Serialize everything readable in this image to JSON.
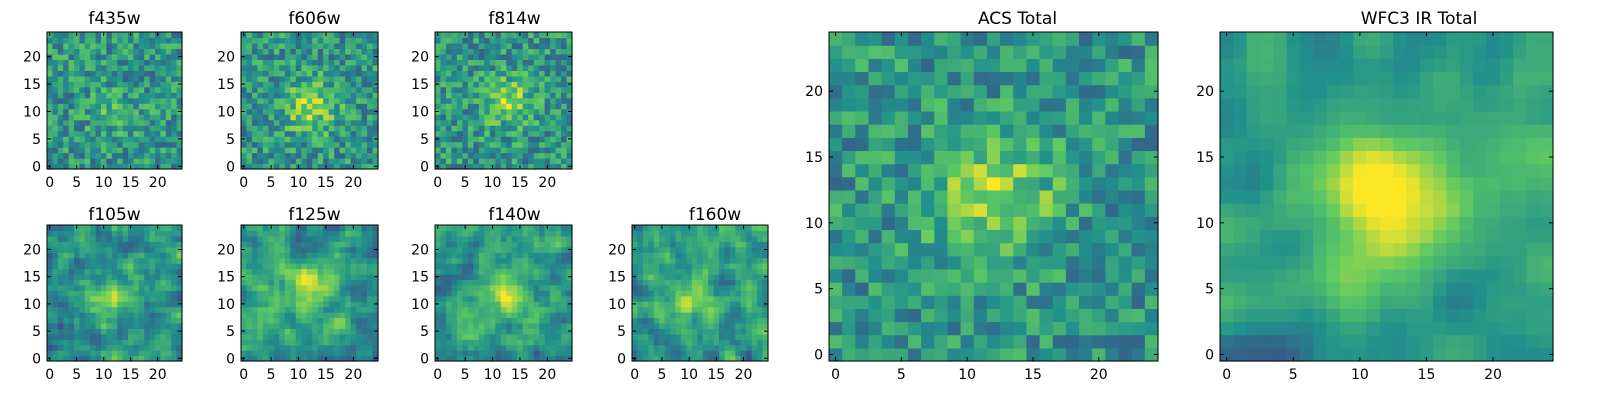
{
  "figure_description": "Grid of image cutout panels showing per-band stamps and stacked totals",
  "colormap": "viridis",
  "colors": {
    "cmap": [
      "#440154",
      "#3b528b",
      "#21918c",
      "#5ec962",
      "#fde725"
    ],
    "axis": "#000000",
    "background": "#ffffff"
  },
  "chart_data": [
    {
      "type": "heatmap",
      "title": "f435w",
      "grid_size": 25,
      "xlim": [
        0,
        24
      ],
      "ylim": [
        0,
        24
      ],
      "xticks": [
        0,
        5,
        10,
        15,
        20
      ],
      "yticks": [
        0,
        5,
        10,
        15,
        20
      ],
      "center": [
        12,
        10
      ],
      "signal": 0.12,
      "noise": 0.42,
      "smooth": 0,
      "seed": 11
    },
    {
      "type": "heatmap",
      "title": "f606w",
      "grid_size": 25,
      "xlim": [
        0,
        24
      ],
      "ylim": [
        0,
        24
      ],
      "xticks": [
        0,
        5,
        10,
        15,
        20
      ],
      "yticks": [
        0,
        5,
        10,
        15,
        20
      ],
      "center": [
        12,
        11
      ],
      "signal": 0.35,
      "noise": 0.42,
      "smooth": 0,
      "seed": 23
    },
    {
      "type": "heatmap",
      "title": "f814w",
      "grid_size": 25,
      "xlim": [
        0,
        24
      ],
      "ylim": [
        0,
        24
      ],
      "xticks": [
        0,
        5,
        10,
        15,
        20
      ],
      "yticks": [
        0,
        5,
        10,
        15,
        20
      ],
      "center": [
        13,
        12
      ],
      "signal": 0.3,
      "noise": 0.42,
      "smooth": 0,
      "seed": 37
    },
    {
      "type": "heatmap",
      "title": "f105w",
      "grid_size": 25,
      "xlim": [
        0,
        24
      ],
      "ylim": [
        0,
        24
      ],
      "xticks": [
        0,
        5,
        10,
        15,
        20
      ],
      "yticks": [
        0,
        5,
        10,
        15,
        20
      ],
      "center": [
        12,
        11
      ],
      "signal": 0.32,
      "noise": 0.55,
      "smooth": 1,
      "seed": 41
    },
    {
      "type": "heatmap",
      "title": "f125w",
      "grid_size": 25,
      "xlim": [
        0,
        24
      ],
      "ylim": [
        0,
        24
      ],
      "xticks": [
        0,
        5,
        10,
        15,
        20
      ],
      "yticks": [
        0,
        5,
        10,
        15,
        20
      ],
      "center": [
        12,
        13
      ],
      "signal": 0.32,
      "noise": 0.55,
      "smooth": 1,
      "seed": 53
    },
    {
      "type": "heatmap",
      "title": "f140w",
      "grid_size": 25,
      "xlim": [
        0,
        24
      ],
      "ylim": [
        0,
        24
      ],
      "xticks": [
        0,
        5,
        10,
        15,
        20
      ],
      "yticks": [
        0,
        5,
        10,
        15,
        20
      ],
      "center": [
        12,
        12
      ],
      "signal": 0.32,
      "noise": 0.5,
      "smooth": 1,
      "seed": 67
    },
    {
      "type": "heatmap",
      "title": "f160w",
      "grid_size": 25,
      "xlim": [
        0,
        24
      ],
      "ylim": [
        0,
        24
      ],
      "xticks": [
        0,
        5,
        10,
        15,
        20
      ],
      "yticks": [
        0,
        5,
        10,
        15,
        20
      ],
      "center": [
        10,
        11
      ],
      "signal": 0.3,
      "noise": 0.55,
      "smooth": 1,
      "seed": 79
    },
    {
      "type": "heatmap",
      "title": "ACS Total",
      "grid_size": 25,
      "xlim": [
        0,
        24
      ],
      "ylim": [
        0,
        24
      ],
      "xticks": [
        0,
        5,
        10,
        15,
        20
      ],
      "yticks": [
        0,
        5,
        10,
        15,
        20
      ],
      "center": [
        12,
        12
      ],
      "signal": 0.35,
      "noise": 0.38,
      "smooth": 0,
      "seed": 83
    },
    {
      "type": "heatmap",
      "title": "WFC3 IR Total",
      "grid_size": 25,
      "xlim": [
        0,
        24
      ],
      "ylim": [
        0,
        24
      ],
      "xticks": [
        0,
        5,
        10,
        15,
        20
      ],
      "yticks": [
        0,
        5,
        10,
        15,
        20
      ],
      "center": [
        12,
        12
      ],
      "signal": 0.5,
      "noise": 0.45,
      "smooth": 2,
      "seed": 97
    }
  ]
}
